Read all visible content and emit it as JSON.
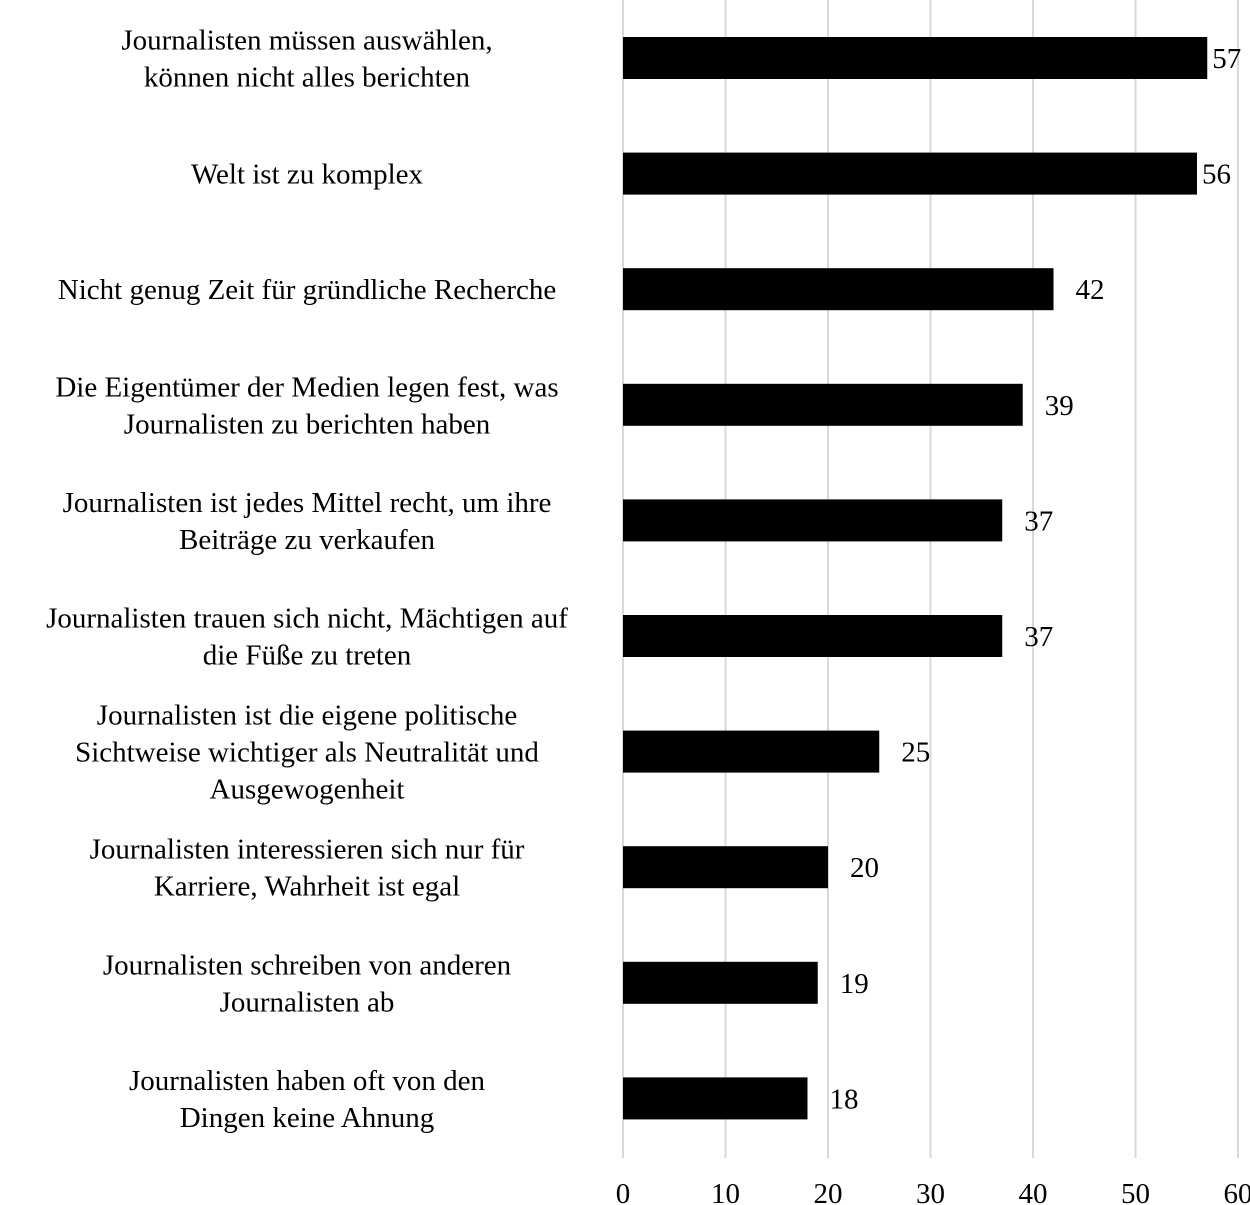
{
  "chart_data": {
    "type": "bar",
    "orientation": "horizontal",
    "categories": [
      "Journalisten müssen auswählen,\nkönnen nicht alles berichten",
      "Welt ist zu komplex",
      "Nicht genug Zeit für gründliche Recherche",
      "Die Eigentümer der Medien legen fest, was\nJournalisten zu berichten haben",
      "Journalisten ist jedes Mittel recht, um ihre\nBeiträge zu verkaufen",
      "Journalisten trauen sich nicht, Mächtigen auf\ndie Füße zu treten",
      "Journalisten ist die eigene politische\nSichtweise wichtiger als Neutralität und\nAusgewogenheit",
      "Journalisten interessieren sich nur für\nKarriere, Wahrheit ist egal",
      "Journalisten schreiben von anderen\nJournalisten ab",
      "Journalisten haben oft von den\nDingen keine Ahnung"
    ],
    "values": [
      57,
      56,
      42,
      39,
      37,
      37,
      25,
      20,
      19,
      18
    ],
    "xlim": [
      0,
      60
    ],
    "xticks": [
      0,
      10,
      20,
      30,
      40,
      50,
      60
    ],
    "grid": "vertical",
    "bar_color": "#000000",
    "grid_color": "#d9d9d9",
    "data_labels": true
  }
}
